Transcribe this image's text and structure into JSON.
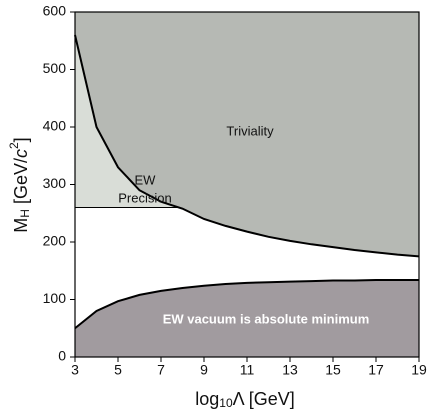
{
  "chart_data": {
    "type": "line",
    "x": [
      3,
      4,
      5,
      6,
      7,
      8,
      9,
      10,
      11,
      12,
      13,
      14,
      15,
      16,
      17,
      18,
      19
    ],
    "series": [
      {
        "color": "#000000",
        "fill": "#b6b9b4",
        "fill_to": "top",
        "values": [
          560,
          400,
          330,
          290,
          270,
          258,
          240,
          228,
          218,
          209,
          202,
          196,
          191,
          186,
          182,
          178,
          175
        ]
      },
      {
        "color": "#000000",
        "fill": "#a19b9f",
        "fill_to": "bottom",
        "values": [
          50,
          80,
          97,
          108,
          115,
          120,
          124,
          127,
          129,
          130,
          131,
          132,
          133,
          133,
          134,
          134,
          134
        ]
      }
    ],
    "ew_precision_limit": 260,
    "ew_precision_fill": "#d9ddd7",
    "xlim": [
      3,
      19
    ],
    "ylim": [
      0,
      600
    ],
    "xticks": [
      3,
      5,
      7,
      9,
      11,
      13,
      15,
      17,
      19
    ],
    "yticks": [
      0,
      100,
      200,
      300,
      400,
      500,
      600
    ],
    "x_label": [
      "log",
      "10",
      "Λ  [GeV]"
    ],
    "y_label": [
      "M",
      "H",
      " [GeV/",
      "c",
      "2",
      "]"
    ],
    "regions": {
      "triviality": "Triviality",
      "ew_precision": [
        "EW",
        "Precision"
      ],
      "vacuum": "EW vacuum is absolute minimum"
    }
  }
}
